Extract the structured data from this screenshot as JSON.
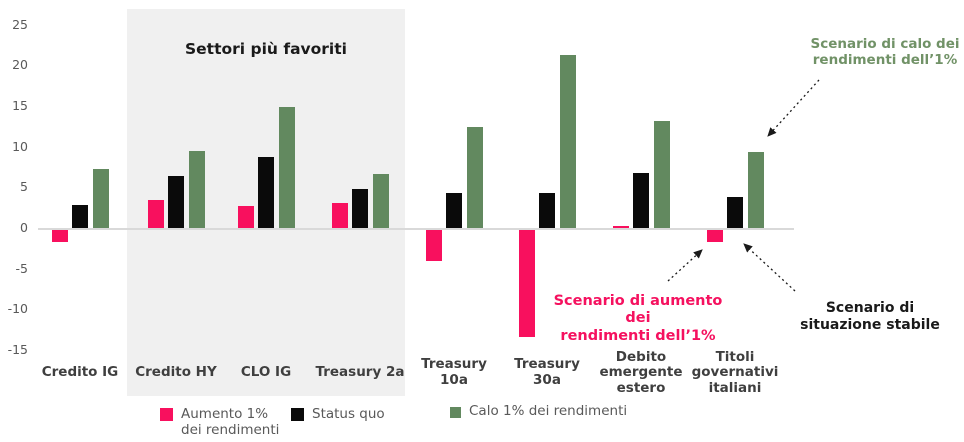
{
  "chart_data": {
    "type": "bar",
    "categories": [
      "Credito IG",
      "Credito HY",
      "CLO IG",
      "Treasury 2a",
      "Treasury\n10a",
      "Treasury\n30a",
      "Debito\nemergente\nestero",
      "Titoli\ngovernativi\nitaliani"
    ],
    "series": [
      {
        "key": "aumento",
        "name": "Aumento 1%\ndei rendimenti",
        "color": "#f8105e",
        "values": [
          -1.5,
          3.4,
          2.7,
          3.1,
          -3.9,
          -13.2,
          0.2,
          -1.5
        ]
      },
      {
        "key": "status-quo",
        "name": "Status quo",
        "color": "#0a0a0a",
        "values": [
          2.8,
          6.4,
          8.7,
          4.8,
          4.3,
          4.3,
          6.8,
          3.8
        ]
      },
      {
        "key": "calo",
        "name": "Calo 1% dei rendimenti",
        "color": "#62895f",
        "values": [
          7.3,
          9.5,
          14.9,
          6.6,
          12.4,
          21.3,
          13.2,
          9.3
        ]
      }
    ],
    "yticks": [
      25,
      20,
      15,
      10,
      5,
      0,
      -5,
      -10,
      -15
    ],
    "ylim": [
      -15,
      25
    ],
    "grid": false,
    "legend_position": "bottom",
    "highlight_region": {
      "label": "Settori più favoriti",
      "covers": [
        "Credito HY",
        "CLO IG",
        "Treasury 2a"
      ],
      "background": "#f0f0f0"
    }
  },
  "annotations": {
    "calo": {
      "text": "Scenario di calo dei\nrendimenti dell’1%",
      "color": "#719267"
    },
    "aumento": {
      "text": "Scenario di aumento dei\nrendimenti dell’1%",
      "color": "#f5115f"
    },
    "stabile": {
      "text": "Scenario di\nsituazione stabile",
      "color": "#1a1a1a"
    }
  },
  "colors": {
    "axis_line": "#d9d9d9",
    "tick_label": "#595959",
    "category_label": "#3f3f3f",
    "arrow": "#1a1a1a"
  }
}
